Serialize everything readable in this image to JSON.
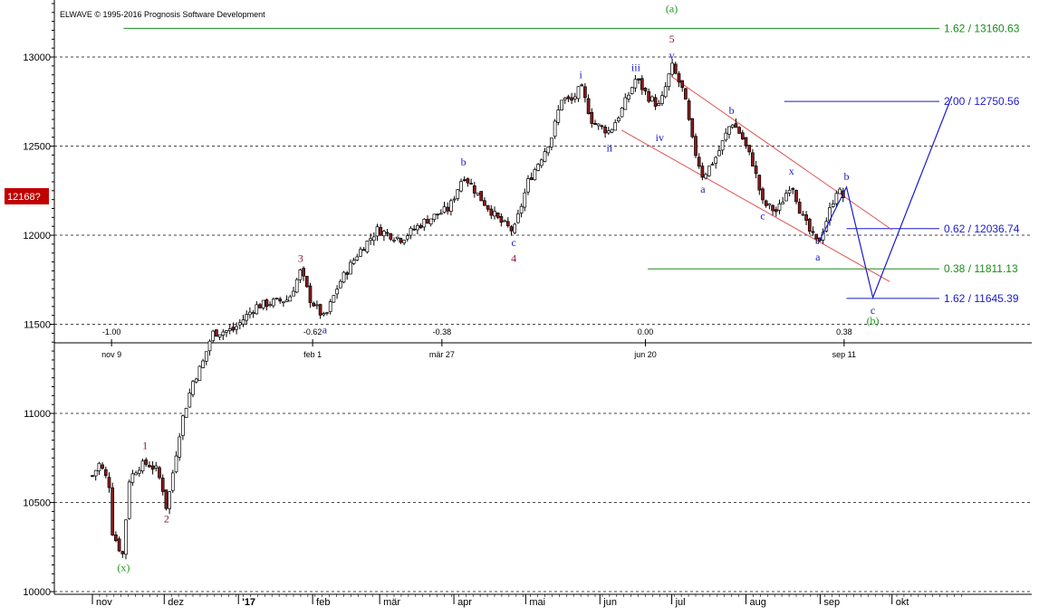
{
  "header": {
    "copyright": "ELWAVE © 1995-2016 Prognosis Software Development"
  },
  "price_tag": "12168?",
  "chart_data": {
    "type": "candlestick",
    "ylim": [
      9985,
      13320
    ],
    "y_ticks": [
      10000,
      10500,
      11000,
      11500,
      12000,
      12500,
      13000
    ],
    "grid": "horizontal dashed",
    "x_month_labels": [
      "nov",
      "dez",
      "'17",
      "feb",
      "mär",
      "apr",
      "mai",
      "jun",
      "jul",
      "aug",
      "sep",
      "okt"
    ],
    "time_axis": {
      "ticks": [
        {
          "date": "nov 9",
          "value": "-1.00"
        },
        {
          "date": "feb 1",
          "value": "-0.62"
        },
        {
          "date": "mär 27",
          "value": "-0.38"
        },
        {
          "date": "jun 20",
          "value": "0.00"
        },
        {
          "date": "sep 11",
          "value": "0.38"
        }
      ]
    },
    "price_path": [
      [
        "2016-11-01",
        10650
      ],
      [
        "2016-11-04",
        10720
      ],
      [
        "2016-11-08",
        10600
      ],
      [
        "2016-11-09",
        10350
      ],
      [
        "2016-11-12",
        10250
      ],
      [
        "2016-11-14",
        10200
      ],
      [
        "2016-11-16",
        10620
      ],
      [
        "2016-11-20",
        10700
      ],
      [
        "2016-11-24",
        10720
      ],
      [
        "2016-11-28",
        10680
      ],
      [
        "2016-12-01",
        10550
      ],
      [
        "2016-12-02",
        10460
      ],
      [
        "2016-12-05",
        10700
      ],
      [
        "2016-12-08",
        10940
      ],
      [
        "2016-12-13",
        11180
      ],
      [
        "2016-12-17",
        11280
      ],
      [
        "2016-12-21",
        11450
      ],
      [
        "2016-12-30",
        11470
      ],
      [
        "2017-01-08",
        11600
      ],
      [
        "2017-01-14",
        11620
      ],
      [
        "2017-01-22",
        11640
      ],
      [
        "2017-01-27",
        11800
      ],
      [
        "2017-01-31",
        11640
      ],
      [
        "2017-02-06",
        11530
      ],
      [
        "2017-02-12",
        11730
      ],
      [
        "2017-02-20",
        11900
      ],
      [
        "2017-02-28",
        12030
      ],
      [
        "2017-03-10",
        11980
      ],
      [
        "2017-03-20",
        12080
      ],
      [
        "2017-03-30",
        12150
      ],
      [
        "2017-04-05",
        12340
      ],
      [
        "2017-04-12",
        12210
      ],
      [
        "2017-04-20",
        12080
      ],
      [
        "2017-04-26",
        12020
      ],
      [
        "2017-05-02",
        12300
      ],
      [
        "2017-05-08",
        12450
      ],
      [
        "2017-05-12",
        12560
      ],
      [
        "2017-05-16",
        12770
      ],
      [
        "2017-05-20",
        12750
      ],
      [
        "2017-05-24",
        12830
      ],
      [
        "2017-05-29",
        12630
      ],
      [
        "2017-06-05",
        12580
      ],
      [
        "2017-06-10",
        12700
      ],
      [
        "2017-06-16",
        12880
      ],
      [
        "2017-06-21",
        12780
      ],
      [
        "2017-06-26",
        12720
      ],
      [
        "2017-07-01",
        12950
      ],
      [
        "2017-07-06",
        12800
      ],
      [
        "2017-07-10",
        12500
      ],
      [
        "2017-07-14",
        12330
      ],
      [
        "2017-07-20",
        12450
      ],
      [
        "2017-07-26",
        12640
      ],
      [
        "2017-07-30",
        12560
      ],
      [
        "2017-08-04",
        12400
      ],
      [
        "2017-08-08",
        12180
      ],
      [
        "2017-08-14",
        12130
      ],
      [
        "2017-08-20",
        12300
      ],
      [
        "2017-08-24",
        12120
      ],
      [
        "2017-08-28",
        12010
      ],
      [
        "2017-08-31",
        11950
      ],
      [
        "2017-09-04",
        12100
      ],
      [
        "2017-09-08",
        12260
      ],
      [
        "2017-09-12",
        12190
      ]
    ],
    "wave_labels": [
      {
        "date": "2016-11-14",
        "value": 10165,
        "label": "(x)",
        "color": "#229922",
        "pos": "below"
      },
      {
        "date": "2016-11-23",
        "value": 10780,
        "label": "1",
        "color": "#8b1a3a",
        "pos": "above"
      },
      {
        "date": "2016-12-02",
        "value": 10440,
        "label": "2",
        "color": "#8b1a3a",
        "pos": "below"
      },
      {
        "date": "2017-01-27",
        "value": 11830,
        "label": "3",
        "color": "#8b1a3a",
        "pos": "above"
      },
      {
        "date": "2017-02-06",
        "value": 11500,
        "label": "a",
        "color": "#1a1acc",
        "pos": "below"
      },
      {
        "date": "2017-04-05",
        "value": 12370,
        "label": "b",
        "color": "#1a1acc",
        "pos": "above"
      },
      {
        "date": "2017-04-26",
        "value": 11990,
        "label": "c",
        "color": "#1a1acc",
        "pos": "below"
      },
      {
        "date": "2017-04-26",
        "value": 11900,
        "label": "4",
        "color": "#8b1a3a",
        "pos": "below"
      },
      {
        "date": "2017-05-24",
        "value": 12860,
        "label": "i",
        "color": "#1a1acc",
        "pos": "above"
      },
      {
        "date": "2017-06-05",
        "value": 12520,
        "label": "ii",
        "color": "#1a1acc",
        "pos": "below"
      },
      {
        "date": "2017-06-16",
        "value": 12900,
        "label": "iii",
        "color": "#1a1acc",
        "pos": "above"
      },
      {
        "date": "2017-06-26",
        "value": 12580,
        "label": "iv",
        "color": "#1a1acc",
        "pos": "below"
      },
      {
        "date": "2017-07-01",
        "value": 12970,
        "label": "v",
        "color": "#1a1acc",
        "pos": "above"
      },
      {
        "date": "2017-07-01",
        "value": 13060,
        "label": "5",
        "color": "#8b1a3a",
        "pos": "above"
      },
      {
        "date": "2017-07-01",
        "value": 13230,
        "label": "(a)",
        "color": "#229922",
        "pos": "above"
      },
      {
        "date": "2017-07-14",
        "value": 12290,
        "label": "a",
        "color": "#1a1acc",
        "pos": "below"
      },
      {
        "date": "2017-07-26",
        "value": 12660,
        "label": "b",
        "color": "#1a1acc",
        "pos": "above"
      },
      {
        "date": "2017-08-08",
        "value": 12140,
        "label": "c",
        "color": "#1a1acc",
        "pos": "below"
      },
      {
        "date": "2017-08-20",
        "value": 12320,
        "label": "x",
        "color": "#1a1acc",
        "pos": "above"
      },
      {
        "date": "2017-08-31",
        "value": 11910,
        "label": "a",
        "color": "#1a1acc",
        "pos": "below"
      },
      {
        "date": "2017-09-12",
        "value": 12290,
        "label": "b",
        "color": "#1a1acc",
        "pos": "above"
      },
      {
        "date": "2017-09-23",
        "value": 11610,
        "label": "c",
        "color": "#1a1acc",
        "pos": "below"
      },
      {
        "date": "2017-09-23",
        "value": 11550,
        "label": "(b)",
        "color": "#229922",
        "pos": "below"
      }
    ],
    "fib_levels": [
      {
        "label": "1.62 / 13160.63",
        "value": 13160.63,
        "color": "#1a8c1a",
        "from": "2016-11-14"
      },
      {
        "label": "2.00 / 12750.56",
        "value": 12750.56,
        "color": "#1a1acc",
        "from": "2017-08-17"
      },
      {
        "label": "0.62 / 12036.74",
        "value": 12036.74,
        "color": "#1a1acc",
        "from": "2017-09-12"
      },
      {
        "label": "0.38 / 11811.13",
        "value": 11811.13,
        "color": "#1a8c1a",
        "from": "2017-06-21"
      },
      {
        "label": "1.62 / 11645.39",
        "value": 11645.39,
        "color": "#1a1acc",
        "from": "2017-09-12"
      }
    ],
    "channel": {
      "upper": [
        [
          "2017-07-01",
          12890
        ],
        [
          "2017-10-01",
          12030
        ]
      ],
      "lower": [
        [
          "2017-06-10",
          12590
        ],
        [
          "2017-09-30",
          11740
        ]
      ]
    },
    "projection": [
      [
        "2017-08-31",
        11950
      ],
      [
        "2017-09-12",
        12270
      ],
      [
        "2017-09-23",
        11650
      ],
      [
        "2017-10-26",
        12780
      ]
    ]
  }
}
